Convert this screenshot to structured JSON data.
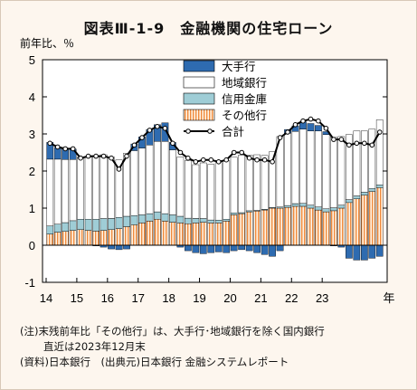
{
  "title": "図表Ⅲ-1-9　金融機関の住宅ローン",
  "chart_data": {
    "type": "bar",
    "stacked": true,
    "ylabel": "前年比、％",
    "ylim": [
      -1,
      5
    ],
    "yticks": [
      -1,
      0,
      1,
      2,
      3,
      4,
      5
    ],
    "xlabel": "年",
    "xticks": [
      "14",
      "15",
      "16",
      "17",
      "18",
      "19",
      "20",
      "21",
      "22",
      "23"
    ],
    "colors": {
      "major": "#2e6bb0",
      "regional": "#ffffff",
      "shinkin": "#9fcdd6",
      "other": "#f4a366",
      "total": "#000000"
    },
    "series": [
      {
        "name": "大手行",
        "values": [
          0.45,
          0.32,
          0.3,
          0.28,
          0.02,
          0.01,
          -0.02,
          -0.05,
          -0.1,
          -0.12,
          -0.1,
          0.18,
          0.3,
          0.42,
          0.45,
          0.5,
          0.2,
          -0.05,
          -0.15,
          -0.2,
          -0.23,
          -0.2,
          -0.18,
          -0.2,
          -0.15,
          -0.12,
          -0.15,
          -0.2,
          -0.25,
          -0.3,
          -0.15,
          0.1,
          0.15,
          0.2,
          0.2,
          0.15,
          0.08,
          -0.02,
          -0.05,
          -0.35,
          -0.4,
          -0.4,
          -0.35,
          -0.3
        ]
      },
      {
        "name": "地域銀行",
        "values": [
          1.8,
          1.75,
          1.7,
          1.65,
          1.65,
          1.68,
          1.7,
          1.72,
          1.65,
          1.55,
          1.7,
          1.75,
          1.8,
          1.85,
          1.9,
          1.95,
          1.75,
          1.6,
          1.55,
          1.45,
          1.5,
          1.5,
          1.55,
          1.58,
          1.5,
          1.55,
          1.5,
          1.5,
          1.45,
          1.5,
          1.9,
          1.95,
          1.95,
          2.0,
          2.0,
          2.05,
          2.0,
          1.9,
          1.85,
          1.75,
          1.75,
          1.65,
          1.6,
          1.75
        ]
      },
      {
        "name": "信用金庫",
        "values": [
          0.22,
          0.22,
          0.24,
          0.26,
          0.28,
          0.3,
          0.32,
          0.32,
          0.3,
          0.3,
          0.28,
          0.25,
          0.22,
          0.2,
          0.2,
          0.2,
          0.2,
          0.18,
          0.15,
          0.12,
          0.1,
          0.08,
          0.08,
          0.05,
          0.05,
          0.03,
          0.03,
          0.02,
          0.02,
          0.02,
          0.03,
          0.05,
          0.07,
          0.08,
          0.08,
          0.08,
          0.08,
          0.08,
          0.08,
          0.08,
          0.08,
          0.08,
          0.08,
          0.08
        ]
      },
      {
        "name": "その他行",
        "values": [
          0.3,
          0.35,
          0.37,
          0.4,
          0.42,
          0.4,
          0.38,
          0.4,
          0.42,
          0.45,
          0.5,
          0.55,
          0.6,
          0.65,
          0.7,
          0.65,
          0.62,
          0.6,
          0.58,
          0.6,
          0.62,
          0.6,
          0.6,
          0.65,
          0.82,
          0.85,
          0.9,
          0.92,
          0.95,
          1.0,
          1.0,
          1.02,
          1.05,
          1.05,
          1.0,
          0.95,
          0.9,
          0.93,
          1.0,
          1.15,
          1.25,
          1.35,
          1.45,
          1.55
        ]
      },
      {
        "name": "合計",
        "type": "line",
        "values": [
          2.75,
          2.65,
          2.6,
          2.6,
          2.35,
          2.4,
          2.4,
          2.4,
          2.35,
          2.05,
          2.4,
          2.7,
          2.9,
          3.1,
          3.2,
          3.15,
          2.75,
          2.5,
          2.35,
          2.25,
          2.3,
          2.3,
          2.25,
          2.3,
          2.5,
          2.5,
          2.35,
          2.3,
          2.3,
          2.25,
          2.9,
          3.05,
          3.25,
          3.35,
          3.4,
          3.35,
          3.15,
          2.85,
          2.85,
          2.7,
          2.75,
          2.75,
          2.7,
          3.05
        ]
      }
    ]
  },
  "notes": {
    "line1": "(注)末残前年比「その他行」は、大手行･地域銀行を除く国内銀行",
    "line2": "直近は2023年12月末",
    "line3": "(資料)日本銀行　(出典元)日本銀行 金融システムレポート"
  }
}
